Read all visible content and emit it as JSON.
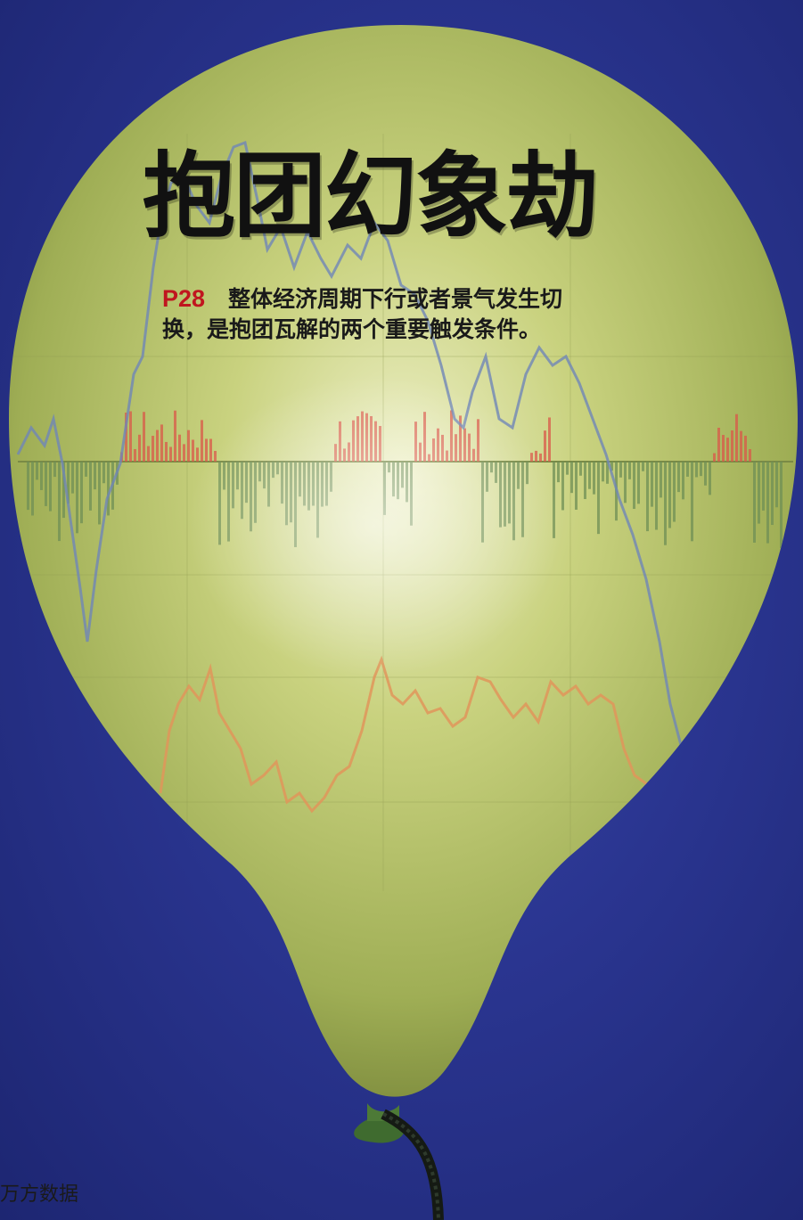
{
  "headline": "抱团幻象劫",
  "teaser": {
    "page_ref": "P28",
    "line1": "整体经济周期下行或者景气发生切",
    "line2": "换，是抱团瓦解的两个重要触发条件。"
  },
  "watermark": "万方数据",
  "colors": {
    "background": "#2a3590",
    "balloon": "#b8c46a",
    "headline": "#111111",
    "page_ref": "#c0161f",
    "blue_line": "#6f86b8",
    "orange_line": "#e0955a",
    "red_bars": "#d9584a",
    "green_bars": "#6f8f55"
  }
}
